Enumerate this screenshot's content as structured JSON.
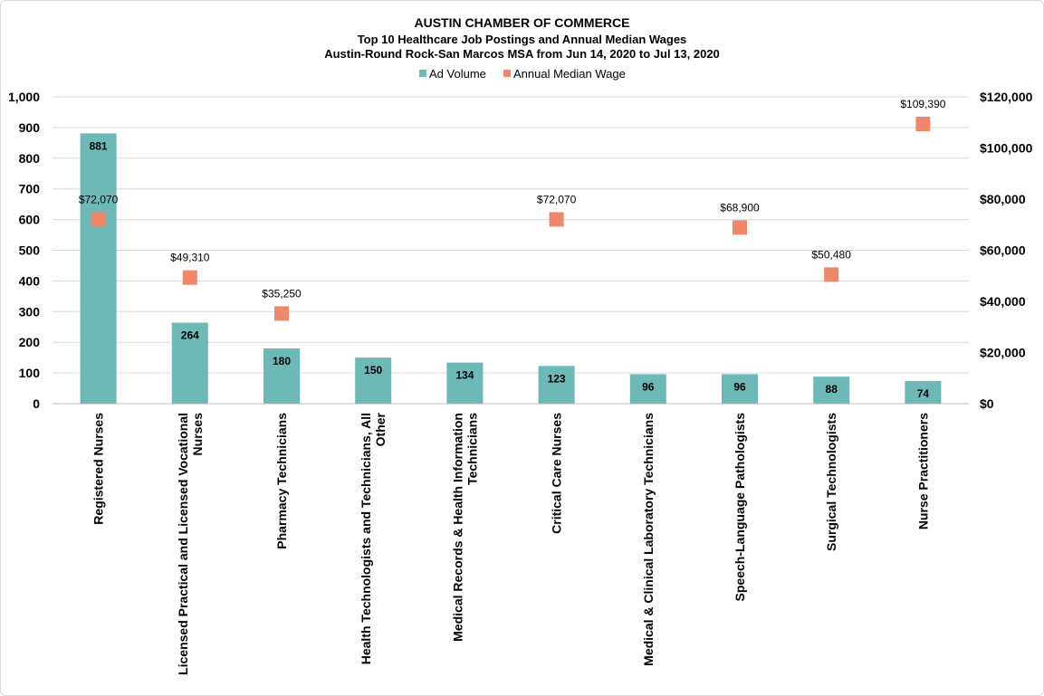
{
  "chart_data": {
    "type": "bar",
    "title": "AUSTIN CHAMBER OF COMMERCE",
    "subtitle_lines": [
      "Top 10 Healthcare Job Postings and Annual  Median Wages",
      "Austin-Round Rock-San Marcos MSA from Jun 14, 2020 to Jul 13, 2020"
    ],
    "categories": [
      [
        "Registered Nurses"
      ],
      [
        "Licensed Practical and Licensed Vocational",
        "Nurses"
      ],
      [
        "Pharmacy Technicians"
      ],
      [
        "Health Technologists and Technicians, All",
        "Other"
      ],
      [
        "Medical Records & Health Information",
        "Technicians"
      ],
      [
        "Critical Care Nurses"
      ],
      [
        "Medical & Clinical Laboratory Technicians"
      ],
      [
        "Speech-Language Pathologists"
      ],
      [
        "Surgical Technologists"
      ],
      [
        "Nurse Practitioners"
      ]
    ],
    "series": [
      {
        "name": "Ad Volume",
        "type": "bar",
        "axis": "left",
        "color": "#6cb9b6",
        "values": [
          881,
          264,
          180,
          150,
          134,
          123,
          96,
          96,
          88,
          74
        ],
        "labels": [
          "881",
          "264",
          "180",
          "150",
          "134",
          "123",
          "96",
          "96",
          "88",
          "74"
        ]
      },
      {
        "name": "Annual Median Wage",
        "type": "scatter",
        "axis": "right",
        "color": "#f0876a",
        "marker": "square",
        "values": [
          72070,
          49310,
          35250,
          null,
          null,
          72070,
          null,
          68900,
          50480,
          109390
        ],
        "labels": [
          "$72,070",
          "$49,310",
          "$35,250",
          null,
          null,
          "$72,070",
          null,
          "$68,900",
          "$50,480",
          "$109,390"
        ]
      }
    ],
    "left_axis": {
      "ylim": [
        0,
        1000
      ],
      "ticks": [
        0,
        100,
        200,
        300,
        400,
        500,
        600,
        700,
        800,
        900,
        1000
      ],
      "tick_labels": [
        "0",
        "100",
        "200",
        "300",
        "400",
        "500",
        "600",
        "700",
        "800",
        "900",
        "1,000"
      ]
    },
    "right_axis": {
      "ylim": [
        0,
        120000
      ],
      "ticks": [
        0,
        20000,
        40000,
        60000,
        80000,
        100000,
        120000
      ],
      "tick_labels": [
        "$0",
        "$20,000",
        "$40,000",
        "$60,000",
        "$80,000",
        "$100,000",
        "$120,000"
      ]
    },
    "grid": true,
    "legend_position": "top-center"
  }
}
